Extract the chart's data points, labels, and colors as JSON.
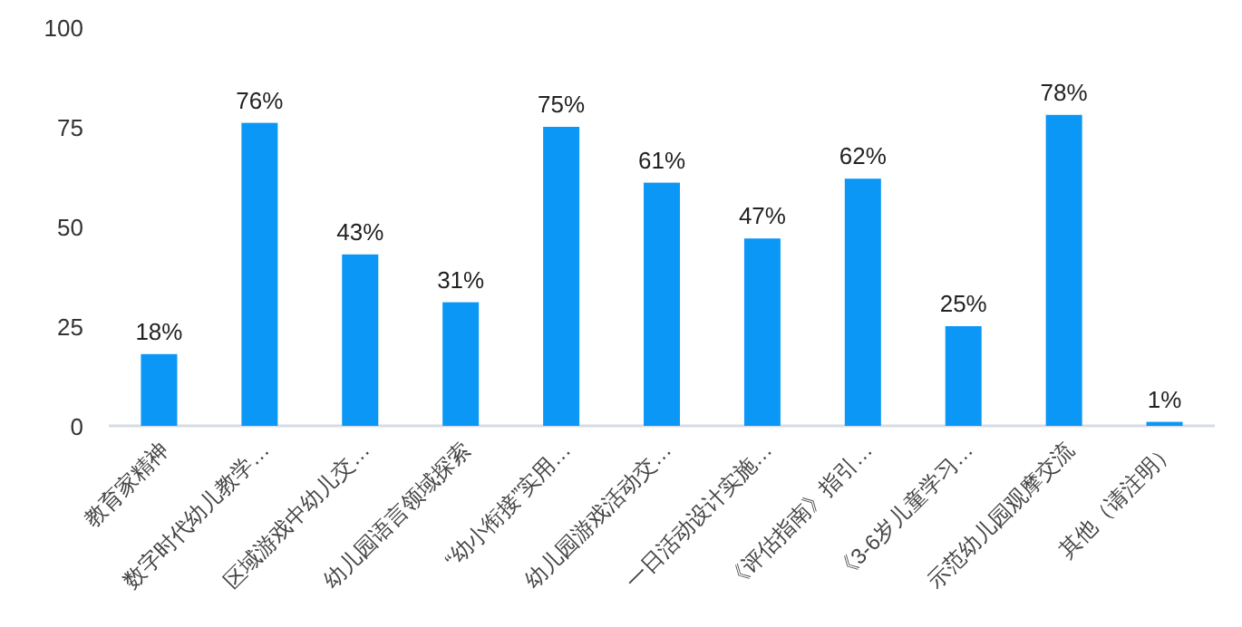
{
  "chart_data": {
    "type": "bar",
    "categories": [
      "教育家精神",
      "数字时代幼儿教学…",
      "区域游戏中幼儿交…",
      "幼儿园语言领域探索",
      "“幼小衔接”实用…",
      "幼儿园游戏活动交…",
      "一日活动设计实施…",
      "《评估指南》指引…",
      "《3-6岁儿童学习…",
      "示范幼儿园观摩交流",
      "其他（请注明）"
    ],
    "values": [
      18,
      76,
      43,
      31,
      75,
      61,
      47,
      62,
      25,
      78,
      1
    ],
    "value_labels": [
      "18%",
      "76%",
      "43%",
      "31%",
      "75%",
      "61%",
      "47%",
      "62%",
      "25%",
      "78%",
      "1%"
    ],
    "color": "#0a97f5",
    "ylim": [
      0,
      100
    ],
    "yticks": [
      0,
      25,
      50,
      75,
      100
    ],
    "grid": false
  }
}
